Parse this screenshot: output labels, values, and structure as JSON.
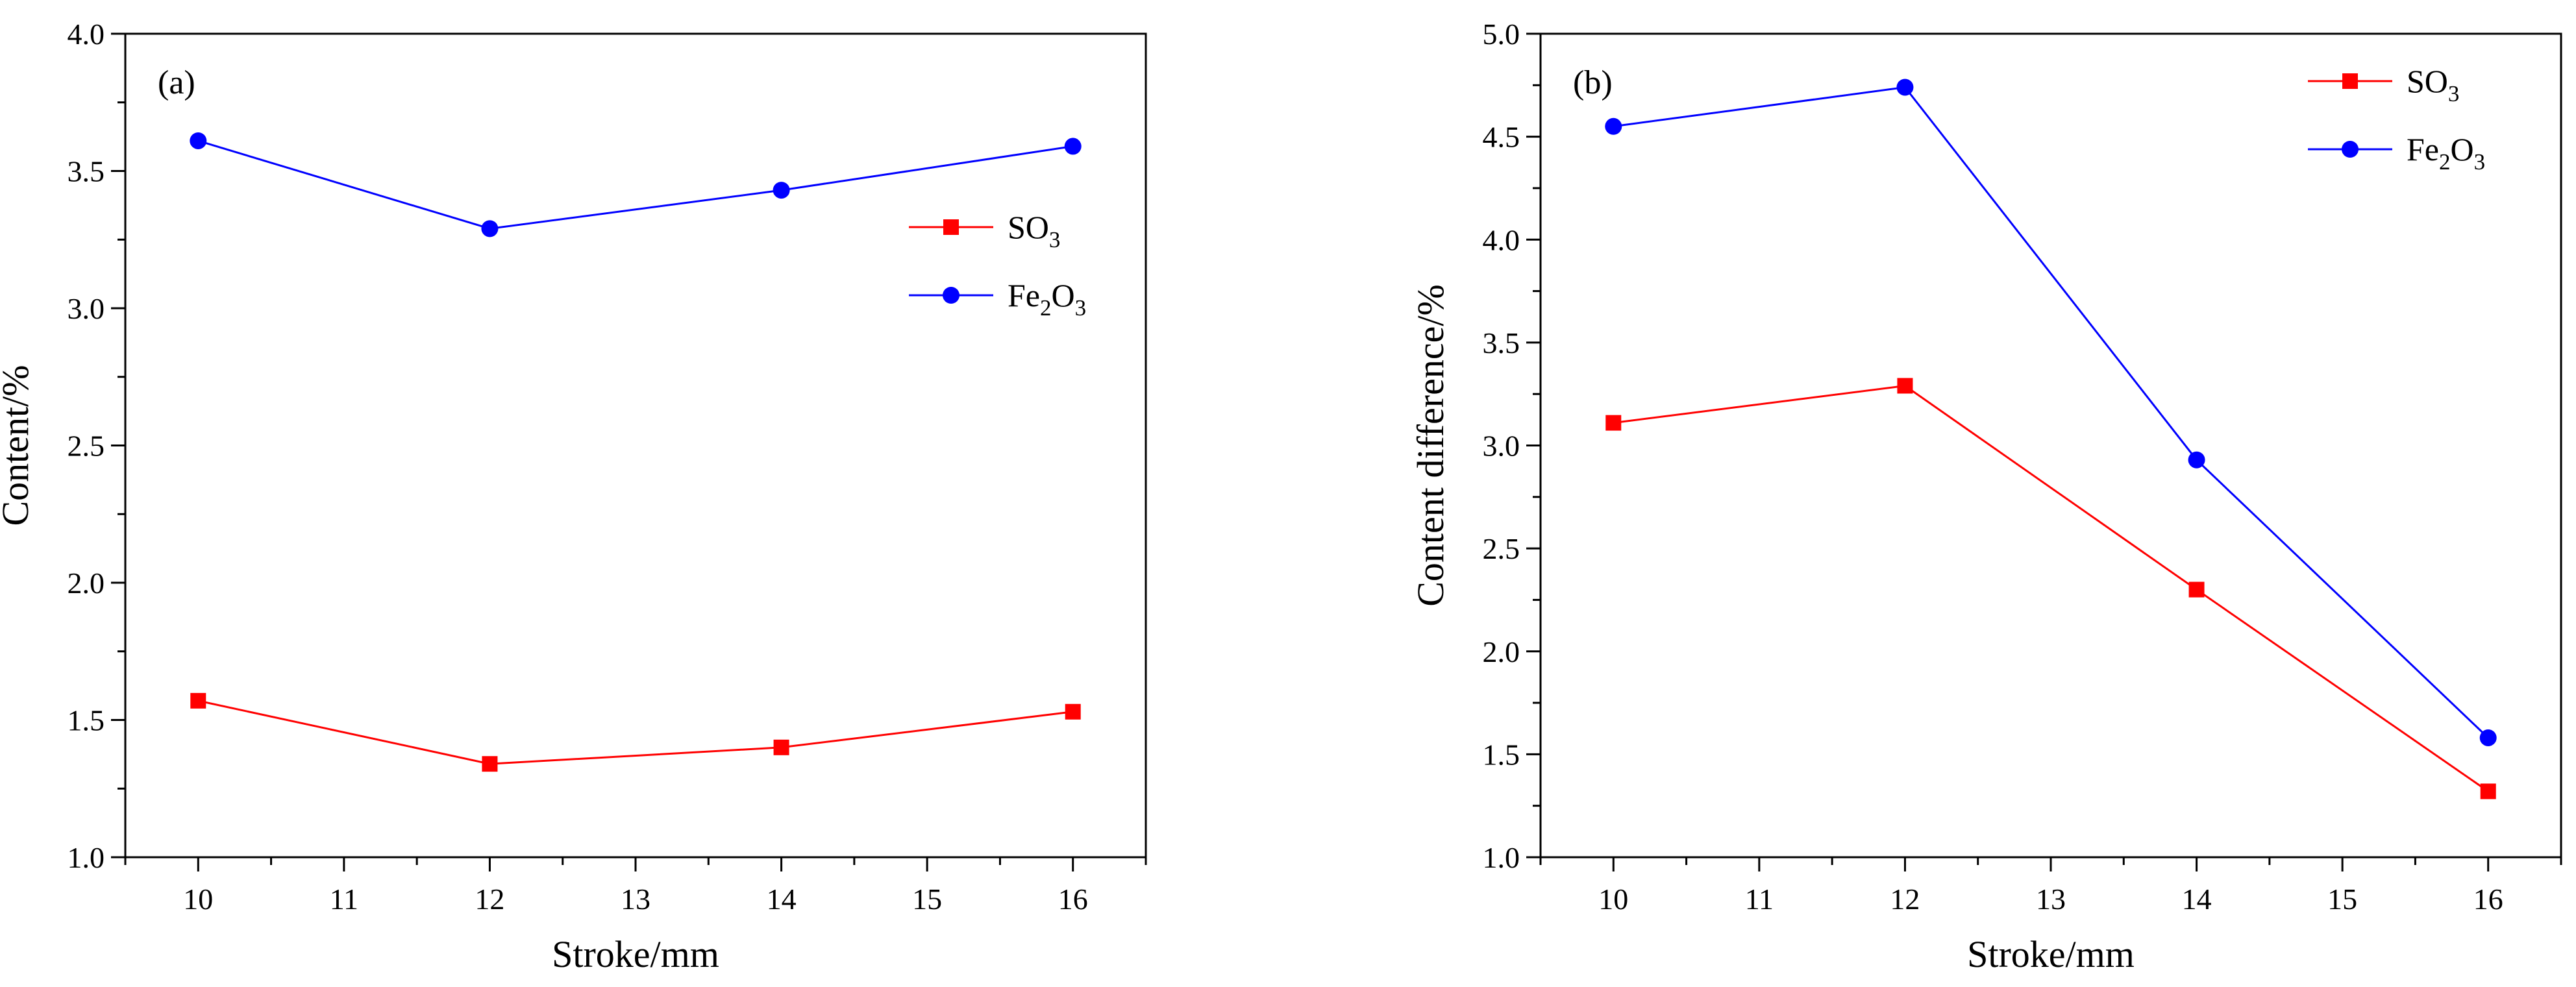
{
  "chart_data": [
    {
      "type": "line",
      "panel_label": "(a)",
      "xlabel": "Stroke/mm",
      "ylabel": "Content/%",
      "xlim": [
        9.5,
        16.5
      ],
      "ylim": [
        1.0,
        4.0
      ],
      "xticks": [
        10,
        11,
        12,
        13,
        14,
        15,
        16
      ],
      "yticks": [
        "1.0",
        "1.5",
        "2.0",
        "2.5",
        "3.0",
        "3.5",
        "4.0"
      ],
      "grid": false,
      "legend_position": "center-right",
      "x": [
        10,
        12,
        14,
        16
      ],
      "series": [
        {
          "name": "SO3",
          "name_parts": [
            "SO",
            "3",
            ""
          ],
          "marker": "square",
          "color": "#ff0000",
          "values": [
            1.57,
            1.34,
            1.4,
            1.53
          ]
        },
        {
          "name": "Fe2O3",
          "name_parts": [
            "Fe",
            "2",
            "O",
            "3"
          ],
          "marker": "circle",
          "color": "#0000ff",
          "values": [
            3.61,
            3.29,
            3.43,
            3.59
          ]
        }
      ]
    },
    {
      "type": "line",
      "panel_label": "(b)",
      "xlabel": "Stroke/mm",
      "ylabel": "Content difference/%",
      "xlim": [
        9.5,
        16.5
      ],
      "ylim": [
        1.0,
        5.0
      ],
      "xticks": [
        10,
        11,
        12,
        13,
        14,
        15,
        16
      ],
      "yticks": [
        "1.0",
        "1.5",
        "2.0",
        "2.5",
        "3.0",
        "3.5",
        "4.0",
        "4.5",
        "5.0"
      ],
      "grid": false,
      "legend_position": "top-right",
      "x": [
        10,
        12,
        14,
        16
      ],
      "series": [
        {
          "name": "SO3",
          "name_parts": [
            "SO",
            "3",
            ""
          ],
          "marker": "square",
          "color": "#ff0000",
          "values": [
            3.11,
            3.29,
            2.3,
            1.32
          ]
        },
        {
          "name": "Fe2O3",
          "name_parts": [
            "Fe",
            "2",
            "O",
            "3"
          ],
          "marker": "circle",
          "color": "#0000ff",
          "values": [
            4.55,
            4.74,
            2.93,
            1.58
          ]
        }
      ]
    }
  ]
}
